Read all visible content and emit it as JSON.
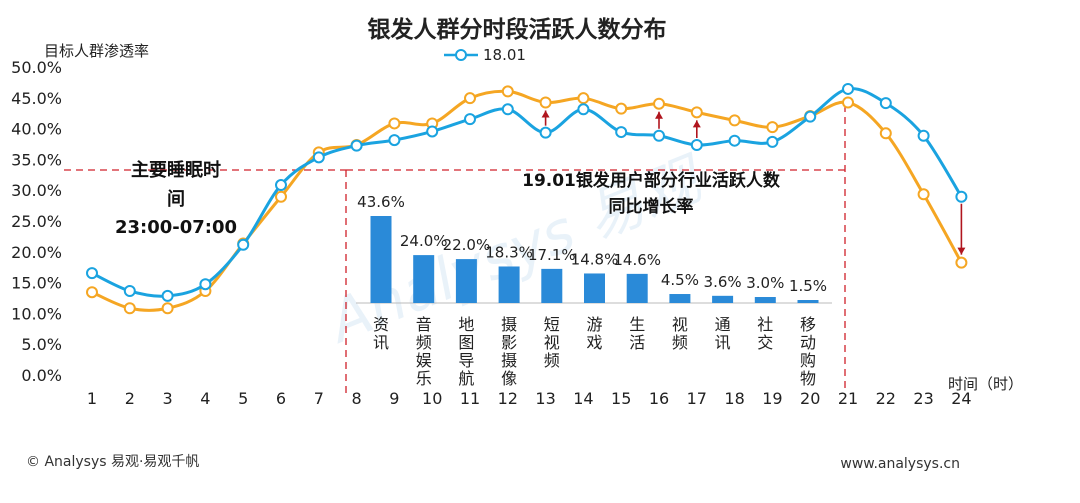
{
  "title": "银发人群分时段活跃人数分布",
  "watermark": "Analysys 易观",
  "footer": {
    "left": "© Analysys 易观·易观千帆",
    "right": "www.analysys.cn"
  },
  "colors": {
    "series_blue": "#1aa3e0",
    "series_orange": "#f5a623",
    "bar": "#2a8ad8",
    "dashed": "#d0202a",
    "arrow": "#b0151e"
  },
  "chart_data": [
    {
      "type": "line",
      "title": "银发人群分时段活跃人数分布",
      "ylabel": "目标人群渗透率",
      "xlabel": "时间（时）",
      "x": [
        1,
        2,
        3,
        4,
        5,
        6,
        7,
        8,
        9,
        10,
        11,
        12,
        13,
        14,
        15,
        16,
        17,
        18,
        19,
        20,
        21,
        22,
        23,
        24
      ],
      "ylim": [
        0,
        50
      ],
      "yticks": [
        "0.0%",
        "5.0%",
        "10.0%",
        "15.0%",
        "20.0%",
        "25.0%",
        "30.0%",
        "35.0%",
        "40.0%",
        "45.0%",
        "50.0%"
      ],
      "legend": "top-center",
      "series": [
        {
          "name": "18.01",
          "color": "#1aa3e0",
          "values": [
            16.7,
            13.8,
            13.0,
            14.9,
            21.3,
            31.0,
            35.5,
            37.4,
            38.3,
            39.7,
            41.7,
            43.3,
            39.5,
            43.3,
            39.6,
            39.0,
            37.5,
            38.2,
            38.0,
            42.1,
            46.6,
            44.3,
            39.0,
            29.1
          ]
        },
        {
          "color": "#f5a623",
          "values": [
            13.6,
            11.0,
            11.0,
            13.8,
            21.5,
            29.1,
            36.3,
            37.5,
            41.0,
            41.0,
            45.1,
            46.2,
            44.4,
            45.1,
            43.4,
            44.2,
            42.8,
            41.5,
            40.4,
            42.2,
            44.4,
            39.4,
            29.5,
            18.4
          ]
        }
      ],
      "arrows": [
        {
          "x": 13,
          "from": 39.5,
          "to": 44.4
        },
        {
          "x": 16,
          "from": 39.0,
          "to": 44.2
        },
        {
          "x": 17,
          "from": 37.5,
          "to": 42.8
        },
        {
          "x": 24,
          "from": 29.1,
          "to": 18.4
        }
      ],
      "annotations": [
        {
          "text": "主要睡眠时",
          "line": 1
        },
        {
          "text": "间",
          "line": 2
        },
        {
          "text": "23:00-07:00",
          "line": 3
        }
      ]
    },
    {
      "type": "bar",
      "title": "19.01银发用户部分行业活跃人数同比增长率",
      "title_lines": [
        "19.01银发用户部分行业活跃人数",
        "同比增长率"
      ],
      "categories": [
        "资讯",
        "音频娱乐",
        "地图导航",
        "摄影摄像",
        "短视频",
        "游戏",
        "生活",
        "视频",
        "通讯",
        "社交",
        "移动购物"
      ],
      "values": [
        43.6,
        24.0,
        22.0,
        18.3,
        17.1,
        14.8,
        14.6,
        4.5,
        3.6,
        3.0,
        1.5
      ],
      "value_labels": [
        "43.6%",
        "24.0%",
        "22.0%",
        "18.3%",
        "17.1%",
        "14.8%",
        "14.6%",
        "4.5%",
        "3.6%",
        "3.0%",
        "1.5%"
      ]
    }
  ]
}
